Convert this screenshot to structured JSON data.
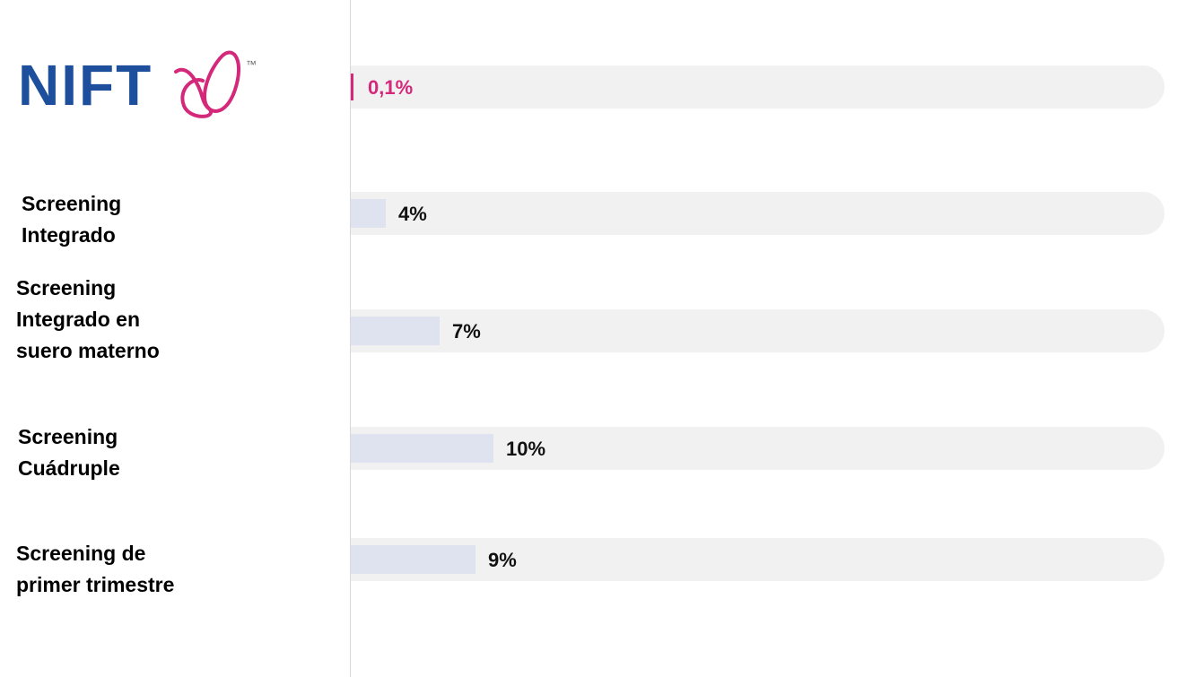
{
  "chart_data": {
    "type": "bar",
    "orientation": "horizontal",
    "logo": {
      "text": "NIFT",
      "mark": "™"
    },
    "categories": [
      null,
      "Screening\nIntegrado",
      "Screening\nIntegrado en\nsuero materno",
      "Screening\nCuádruple",
      "Screening de\nprimer trimestre"
    ],
    "values": [
      0.1,
      4,
      7,
      10,
      9
    ],
    "value_labels": [
      "0,1%",
      "4%",
      "7%",
      "10%",
      "9%"
    ],
    "colors": [
      "#d4287a",
      "#dfe3ef",
      "#dfe3ef",
      "#dfe3ef",
      "#dfe3ef"
    ],
    "label_colors": [
      "#d4287a",
      "#111111",
      "#111111",
      "#111111",
      "#111111"
    ],
    "track_color": "#f1f1f1"
  }
}
